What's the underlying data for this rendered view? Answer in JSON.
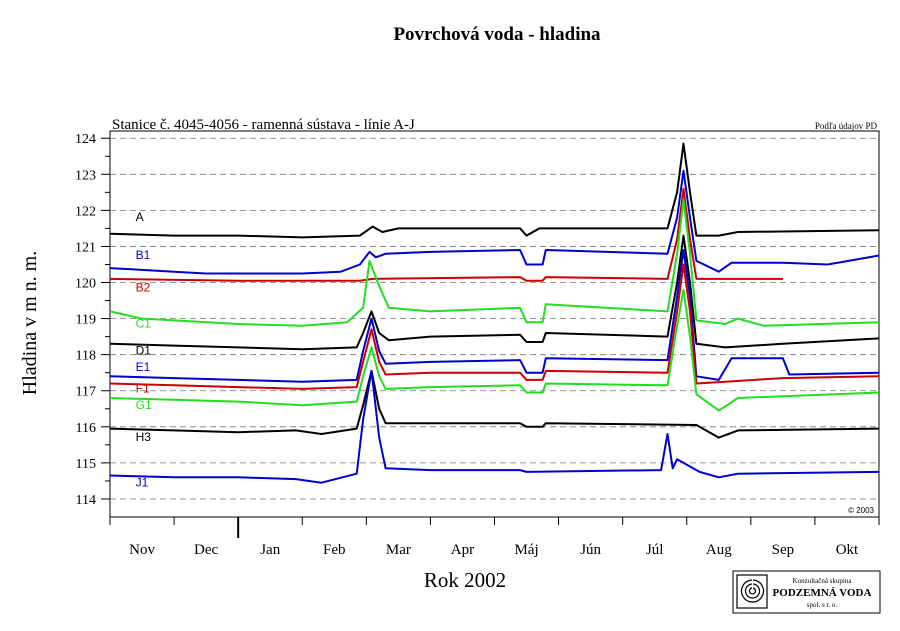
{
  "chart_data": {
    "type": "line",
    "title": "Povrchová voda - hladina",
    "subtitle": "Stanice č. 4045-4056 - ramenná sústava  - línie A-J",
    "source_note": "Podľa údajov PD",
    "copyright": "© 2003",
    "xlabel": "Rok 2002",
    "ylabel": "Hladina v m n. m.",
    "ylim": [
      113.5,
      124.2
    ],
    "yticks": [
      "114",
      "115",
      "116",
      "117",
      "118",
      "119",
      "120",
      "121",
      "122",
      "123",
      "124"
    ],
    "xticks": [
      "Nov",
      "Dec",
      "Jan",
      "Feb",
      "Mar",
      "Apr",
      "Máj",
      "Jún",
      "Júl",
      "Aug",
      "Sep",
      "Okt"
    ],
    "xlim": [
      0,
      12
    ],
    "grid": "horizontal dashed",
    "series": [
      {
        "name": "A",
        "color": "#000000",
        "label_at": [
          0.4,
          121.7
        ],
        "points": [
          [
            0,
            121.35
          ],
          [
            1,
            121.3
          ],
          [
            2,
            121.3
          ],
          [
            3,
            121.25
          ],
          [
            3.9,
            121.3
          ],
          [
            4.1,
            121.55
          ],
          [
            4.25,
            121.4
          ],
          [
            4.5,
            121.5
          ],
          [
            6.4,
            121.5
          ],
          [
            6.5,
            121.3
          ],
          [
            6.7,
            121.5
          ],
          [
            8.7,
            121.5
          ],
          [
            8.85,
            122.5
          ],
          [
            8.95,
            123.85
          ],
          [
            9.05,
            122.5
          ],
          [
            9.15,
            121.3
          ],
          [
            9.5,
            121.3
          ],
          [
            9.8,
            121.4
          ],
          [
            12,
            121.45
          ]
        ]
      },
      {
        "name": "B1",
        "color": "#0000cc",
        "label_at": [
          0.4,
          120.65
        ],
        "points": [
          [
            0,
            120.4
          ],
          [
            0.5,
            120.35
          ],
          [
            1,
            120.3
          ],
          [
            1.5,
            120.25
          ],
          [
            2,
            120.25
          ],
          [
            3,
            120.25
          ],
          [
            3.6,
            120.3
          ],
          [
            3.9,
            120.5
          ],
          [
            4.05,
            120.85
          ],
          [
            4.15,
            120.7
          ],
          [
            4.3,
            120.8
          ],
          [
            5,
            120.85
          ],
          [
            6.4,
            120.9
          ],
          [
            6.5,
            120.5
          ],
          [
            6.75,
            120.5
          ],
          [
            6.8,
            120.9
          ],
          [
            8.7,
            120.8
          ],
          [
            8.85,
            121.8
          ],
          [
            8.95,
            123.1
          ],
          [
            9.05,
            121.8
          ],
          [
            9.15,
            120.6
          ],
          [
            9.5,
            120.3
          ],
          [
            9.7,
            120.55
          ],
          [
            10.5,
            120.55
          ],
          [
            11.2,
            120.5
          ],
          [
            12,
            120.75
          ]
        ]
      },
      {
        "name": "B2",
        "color": "#cc0000",
        "label_at": [
          0.4,
          119.75
        ],
        "points": [
          [
            0,
            120.1
          ],
          [
            2,
            120.05
          ],
          [
            3.9,
            120.05
          ],
          [
            4.1,
            120.1
          ],
          [
            6.4,
            120.15
          ],
          [
            6.5,
            120.05
          ],
          [
            6.75,
            120.05
          ],
          [
            6.8,
            120.15
          ],
          [
            8.7,
            120.1
          ],
          [
            8.85,
            121.2
          ],
          [
            8.95,
            122.6
          ],
          [
            9.05,
            121.2
          ],
          [
            9.15,
            120.1
          ],
          [
            10.5,
            120.1
          ]
        ]
      },
      {
        "name": "C1",
        "color": "#22dd22",
        "label_at": [
          0.4,
          118.75
        ],
        "points": [
          [
            0,
            119.2
          ],
          [
            0.5,
            119.0
          ],
          [
            1,
            118.95
          ],
          [
            2,
            118.85
          ],
          [
            3,
            118.8
          ],
          [
            3.7,
            118.9
          ],
          [
            3.95,
            119.3
          ],
          [
            4.05,
            120.6
          ],
          [
            4.2,
            119.9
          ],
          [
            4.35,
            119.3
          ],
          [
            5,
            119.2
          ],
          [
            6.4,
            119.3
          ],
          [
            6.5,
            118.9
          ],
          [
            6.75,
            118.9
          ],
          [
            6.8,
            119.4
          ],
          [
            8.7,
            119.2
          ],
          [
            8.85,
            120.8
          ],
          [
            8.95,
            122.3
          ],
          [
            9.05,
            120.8
          ],
          [
            9.15,
            118.95
          ],
          [
            9.6,
            118.85
          ],
          [
            9.8,
            119.0
          ],
          [
            10.2,
            118.8
          ],
          [
            12,
            118.9
          ]
        ]
      },
      {
        "name": "D1",
        "color": "#000000",
        "label_at": [
          0.4,
          118.0
        ],
        "points": [
          [
            0,
            118.3
          ],
          [
            1,
            118.25
          ],
          [
            2,
            118.2
          ],
          [
            3,
            118.15
          ],
          [
            3.85,
            118.2
          ],
          [
            3.95,
            118.6
          ],
          [
            4.08,
            119.2
          ],
          [
            4.2,
            118.6
          ],
          [
            4.35,
            118.4
          ],
          [
            5,
            118.5
          ],
          [
            6.4,
            118.55
          ],
          [
            6.5,
            118.35
          ],
          [
            6.75,
            118.35
          ],
          [
            6.8,
            118.6
          ],
          [
            8.7,
            118.5
          ],
          [
            8.85,
            120.0
          ],
          [
            8.95,
            121.3
          ],
          [
            9.05,
            120.0
          ],
          [
            9.15,
            118.3
          ],
          [
            9.6,
            118.2
          ],
          [
            10.5,
            118.3
          ],
          [
            12,
            118.45
          ]
        ]
      },
      {
        "name": "E1",
        "color": "#0000cc",
        "label_at": [
          0.4,
          117.55
        ],
        "points": [
          [
            0,
            117.4
          ],
          [
            1,
            117.35
          ],
          [
            2,
            117.3
          ],
          [
            3,
            117.25
          ],
          [
            3.85,
            117.3
          ],
          [
            3.95,
            118.1
          ],
          [
            4.08,
            119.0
          ],
          [
            4.2,
            118.1
          ],
          [
            4.3,
            117.75
          ],
          [
            5,
            117.8
          ],
          [
            6.4,
            117.85
          ],
          [
            6.5,
            117.5
          ],
          [
            6.75,
            117.5
          ],
          [
            6.8,
            117.9
          ],
          [
            8.7,
            117.85
          ],
          [
            8.85,
            119.6
          ],
          [
            8.95,
            120.9
          ],
          [
            9.05,
            119.6
          ],
          [
            9.15,
            117.4
          ],
          [
            9.5,
            117.3
          ],
          [
            9.7,
            117.9
          ],
          [
            10.5,
            117.9
          ],
          [
            10.6,
            117.45
          ],
          [
            12,
            117.5
          ]
        ]
      },
      {
        "name": "F1",
        "color": "#cc0000",
        "label_at": [
          0.4,
          116.95
        ],
        "points": [
          [
            0,
            117.2
          ],
          [
            1,
            117.15
          ],
          [
            2,
            117.1
          ],
          [
            3,
            117.05
          ],
          [
            3.85,
            117.1
          ],
          [
            3.95,
            117.8
          ],
          [
            4.08,
            118.7
          ],
          [
            4.2,
            117.8
          ],
          [
            4.3,
            117.45
          ],
          [
            5,
            117.5
          ],
          [
            6.4,
            117.5
          ],
          [
            6.5,
            117.3
          ],
          [
            6.75,
            117.3
          ],
          [
            6.8,
            117.55
          ],
          [
            8.7,
            117.5
          ],
          [
            8.85,
            119.2
          ],
          [
            8.95,
            120.5
          ],
          [
            9.05,
            119.2
          ],
          [
            9.15,
            117.2
          ],
          [
            9.6,
            117.25
          ],
          [
            10.5,
            117.35
          ],
          [
            12,
            117.4
          ]
        ]
      },
      {
        "name": "G1",
        "color": "#22dd22",
        "label_at": [
          0.4,
          116.5
        ],
        "points": [
          [
            0,
            116.8
          ],
          [
            1,
            116.75
          ],
          [
            2,
            116.7
          ],
          [
            3,
            116.6
          ],
          [
            3.85,
            116.7
          ],
          [
            3.95,
            117.4
          ],
          [
            4.08,
            118.2
          ],
          [
            4.2,
            117.4
          ],
          [
            4.3,
            117.05
          ],
          [
            5,
            117.1
          ],
          [
            6.4,
            117.15
          ],
          [
            6.5,
            116.95
          ],
          [
            6.75,
            116.95
          ],
          [
            6.8,
            117.2
          ],
          [
            8.7,
            117.15
          ],
          [
            8.85,
            118.8
          ],
          [
            8.95,
            119.8
          ],
          [
            9.05,
            118.5
          ],
          [
            9.15,
            116.9
          ],
          [
            9.5,
            116.45
          ],
          [
            9.8,
            116.8
          ],
          [
            12,
            116.95
          ]
        ]
      },
      {
        "name": "H3",
        "color": "#000000",
        "label_at": [
          0.4,
          115.6
        ],
        "points": [
          [
            0,
            115.95
          ],
          [
            1,
            115.9
          ],
          [
            2,
            115.85
          ],
          [
            2.9,
            115.9
          ],
          [
            3.3,
            115.8
          ],
          [
            3.85,
            115.95
          ],
          [
            3.95,
            116.6
          ],
          [
            4.08,
            117.55
          ],
          [
            4.2,
            116.5
          ],
          [
            4.3,
            116.1
          ],
          [
            5,
            116.1
          ],
          [
            6.4,
            116.1
          ],
          [
            6.5,
            116.0
          ],
          [
            6.75,
            116.0
          ],
          [
            6.8,
            116.1
          ],
          [
            9.15,
            116.05
          ],
          [
            9.5,
            115.7
          ],
          [
            9.8,
            115.9
          ],
          [
            12,
            115.95
          ]
        ]
      },
      {
        "name": "J1",
        "color": "#0000cc",
        "label_at": [
          0.4,
          114.35
        ],
        "points": [
          [
            0,
            114.65
          ],
          [
            1,
            114.6
          ],
          [
            2,
            114.6
          ],
          [
            2.9,
            114.55
          ],
          [
            3.3,
            114.45
          ],
          [
            3.85,
            114.7
          ],
          [
            3.95,
            116.2
          ],
          [
            4.08,
            117.55
          ],
          [
            4.2,
            115.7
          ],
          [
            4.3,
            114.85
          ],
          [
            5,
            114.8
          ],
          [
            6.4,
            114.8
          ],
          [
            6.5,
            114.75
          ],
          [
            8.6,
            114.8
          ],
          [
            8.7,
            115.8
          ],
          [
            8.78,
            114.85
          ],
          [
            8.85,
            115.1
          ],
          [
            9.2,
            114.75
          ],
          [
            9.5,
            114.6
          ],
          [
            9.8,
            114.7
          ],
          [
            12,
            114.75
          ]
        ]
      }
    ]
  },
  "logo": {
    "line1": "Konzultačná skupina",
    "line2": "PODZEMNÁ VODA",
    "line3": "spol. s r. o."
  }
}
